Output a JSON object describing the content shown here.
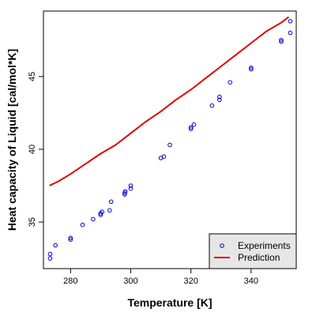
{
  "chart_data": {
    "type": "scatter",
    "xlabel": "Temperature [K]",
    "ylabel": "Heat capacity of Liquid [cal/mol*K]",
    "xlim": [
      271,
      355
    ],
    "ylim": [
      31.8,
      49.5
    ],
    "xticks": [
      280,
      300,
      320,
      340
    ],
    "yticks": [
      35,
      40,
      45
    ],
    "grid": false,
    "legend_position": "bottom-right",
    "series": [
      {
        "name": "Experiments",
        "kind": "points",
        "marker": "o",
        "color": "#0000cc",
        "points": [
          [
            273.2,
            32.5
          ],
          [
            273.2,
            32.8
          ],
          [
            275.0,
            33.4
          ],
          [
            280.0,
            33.8
          ],
          [
            280.0,
            33.9
          ],
          [
            284.0,
            34.8
          ],
          [
            287.5,
            35.2
          ],
          [
            290.0,
            35.5
          ],
          [
            290.0,
            35.6
          ],
          [
            290.5,
            35.7
          ],
          [
            293.0,
            35.8
          ],
          [
            293.5,
            36.4
          ],
          [
            298.0,
            36.9
          ],
          [
            298.0,
            37.0
          ],
          [
            298.2,
            37.1
          ],
          [
            300.0,
            37.3
          ],
          [
            300.0,
            37.5
          ],
          [
            310.0,
            39.4
          ],
          [
            311.0,
            39.5
          ],
          [
            313.0,
            40.3
          ],
          [
            320.0,
            41.4
          ],
          [
            320.0,
            41.5
          ],
          [
            321.0,
            41.7
          ],
          [
            327.0,
            43.0
          ],
          [
            329.5,
            43.4
          ],
          [
            329.5,
            43.6
          ],
          [
            333.0,
            44.6
          ],
          [
            340.0,
            45.5
          ],
          [
            340.0,
            45.6
          ],
          [
            350.0,
            47.4
          ],
          [
            350.0,
            47.5
          ],
          [
            353.0,
            48.0
          ],
          [
            353.0,
            48.8
          ]
        ]
      },
      {
        "name": "Prediction",
        "kind": "line",
        "color": "#dd0000",
        "points": [
          [
            273.0,
            37.5
          ],
          [
            276.0,
            37.8
          ],
          [
            280.0,
            38.3
          ],
          [
            285.0,
            39.0
          ],
          [
            290.0,
            39.7
          ],
          [
            295.0,
            40.3
          ],
          [
            300.0,
            41.1
          ],
          [
            305.0,
            41.9
          ],
          [
            310.0,
            42.6
          ],
          [
            315.0,
            43.4
          ],
          [
            320.0,
            44.1
          ],
          [
            325.0,
            44.9
          ],
          [
            330.0,
            45.7
          ],
          [
            335.0,
            46.5
          ],
          [
            340.0,
            47.3
          ],
          [
            345.0,
            48.1
          ],
          [
            350.0,
            48.7
          ],
          [
            352.5,
            49.1
          ]
        ]
      }
    ]
  }
}
